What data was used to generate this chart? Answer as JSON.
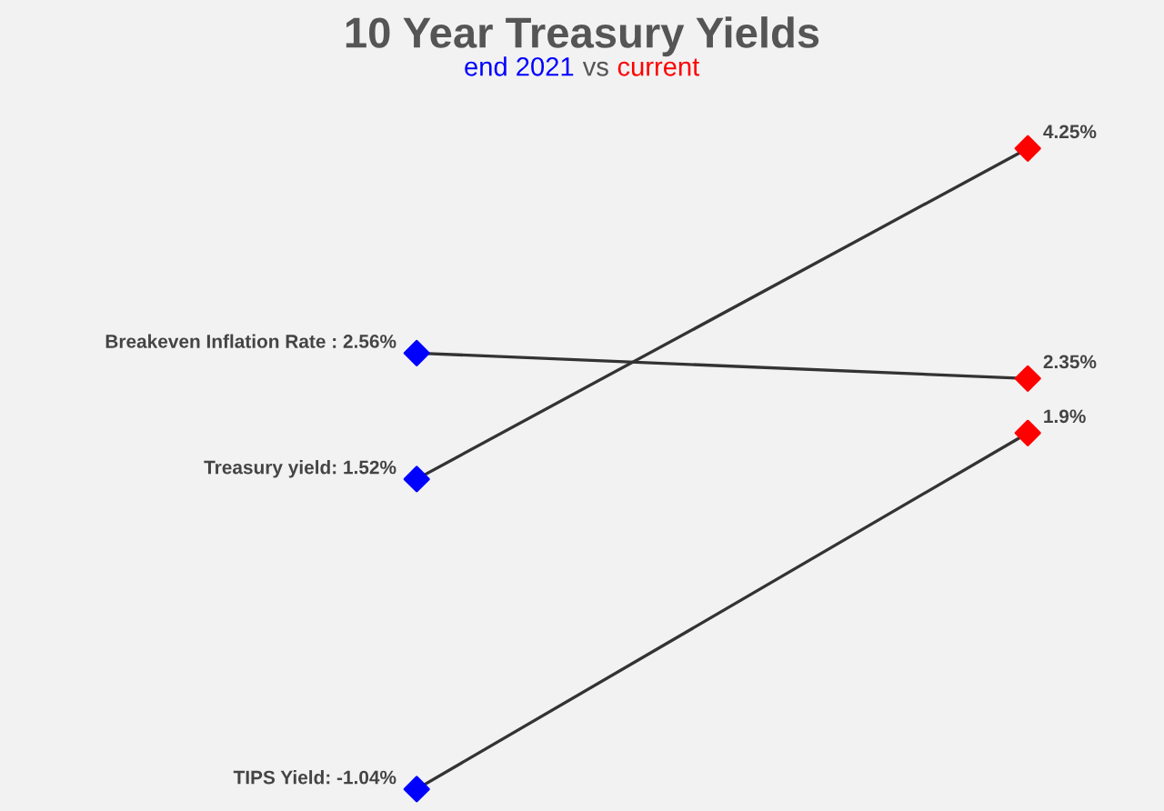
{
  "chart_data": {
    "type": "line",
    "title": "10 Year Treasury Yields",
    "subtitle": "end 2021 vs current",
    "categories": [
      null,
      null
    ],
    "marker": "diamond",
    "line_style": "solid",
    "series": [
      {
        "color": "#333333",
        "colors": [
          "#0000ff",
          "#ff0000"
        ],
        "values": [
          2.56,
          2.35
        ],
        "value_labels": [
          "Breakeven Inflation Rate : 2.56%",
          "2.35%"
        ]
      },
      {
        "color": "#333333",
        "colors": [
          "#0000ff",
          "#ff0000"
        ],
        "values": [
          1.52,
          4.25
        ],
        "value_labels": [
          "Treasury yield: 1.52%",
          "4.25%"
        ]
      },
      {
        "color": "#333333",
        "colors": [
          "#0000ff",
          "#ff0000"
        ],
        "values": [
          -1.04,
          1.9
        ],
        "value_labels": [
          "TIPS Yield: -1.04%",
          "1.9%"
        ]
      }
    ]
  }
}
